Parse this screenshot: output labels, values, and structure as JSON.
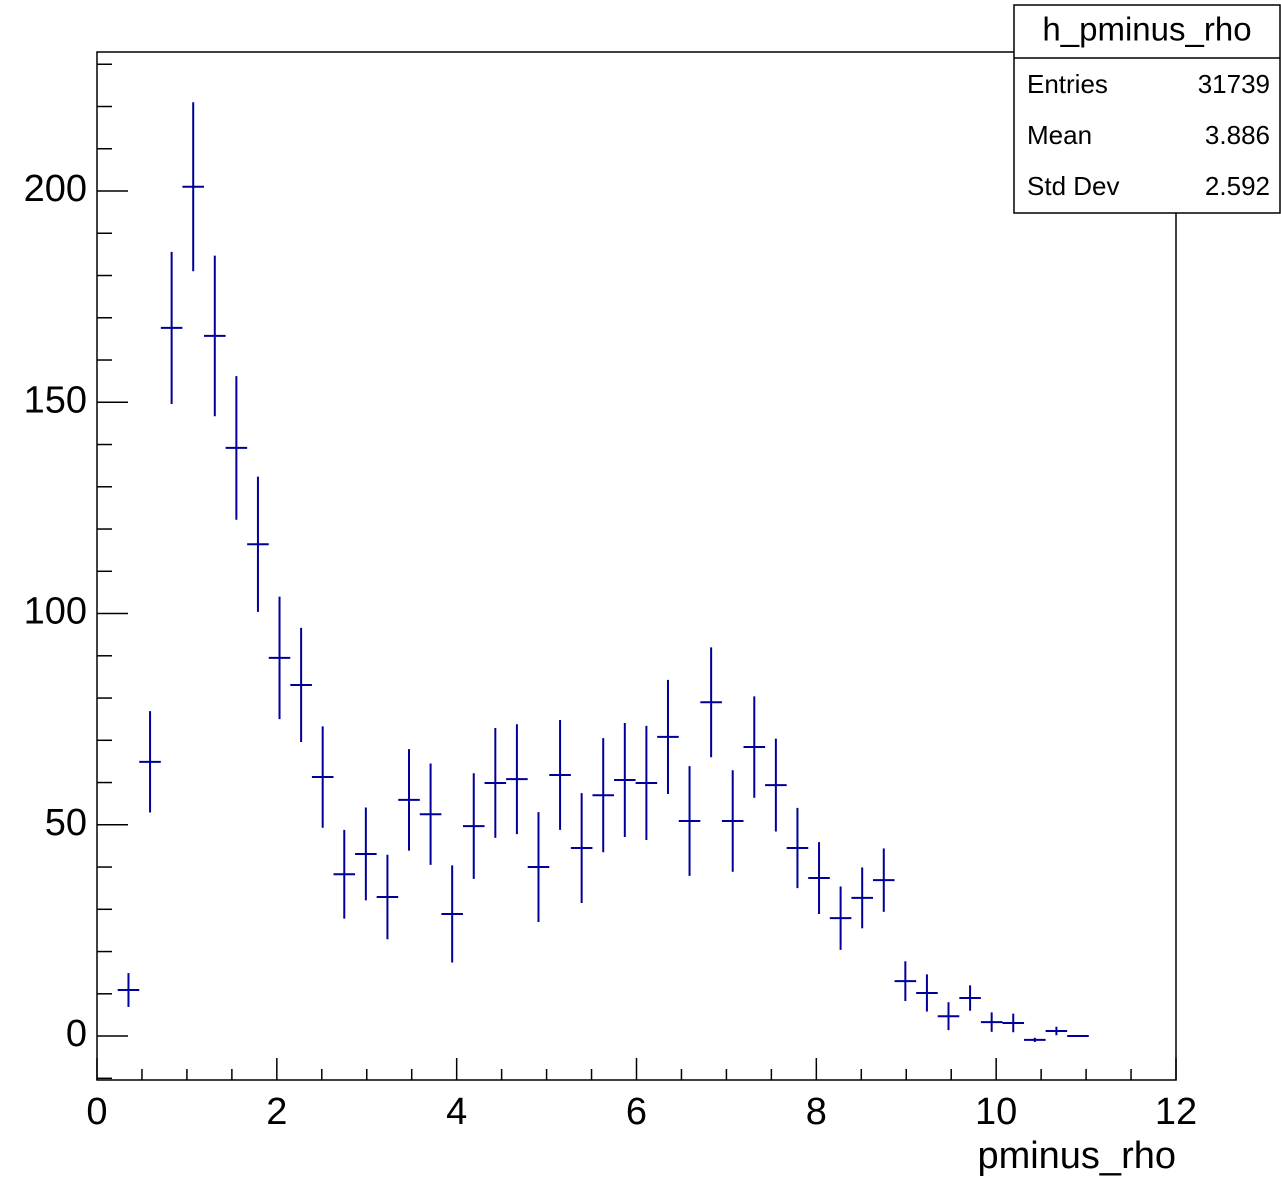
{
  "chart_data": {
    "type": "errorbar",
    "x_label": "pminus_rho",
    "color": "#000099",
    "x": [
      0.35,
      0.59,
      0.83,
      1.07,
      1.31,
      1.55,
      1.79,
      2.03,
      2.27,
      2.51,
      2.75,
      2.99,
      3.23,
      3.47,
      3.71,
      3.95,
      4.19,
      4.43,
      4.67,
      4.91,
      5.15,
      5.39,
      5.63,
      5.87,
      6.11,
      6.35,
      6.59,
      6.83,
      7.07,
      7.31,
      7.55,
      7.79,
      8.03,
      8.27,
      8.51,
      8.75,
      8.99,
      9.23,
      9.47,
      9.71,
      9.95,
      10.19,
      10.43,
      10.67,
      10.91
    ],
    "bin_width": 0.24,
    "values": [
      10.9,
      64.9,
      167.6,
      201,
      165.7,
      139.2,
      116.4,
      89.5,
      83.1,
      61.3,
      38.3,
      43.1,
      32.9,
      55.9,
      52.5,
      28.9,
      49.7,
      59.9,
      60.8,
      40,
      61.8,
      44.5,
      57,
      60.6,
      59.9,
      70.8,
      50.9,
      79,
      50.9,
      68.4,
      59.4,
      44.5,
      37.4,
      27.9,
      32.7,
      36.9,
      13,
      10.2,
      4.7,
      9,
      3.3,
      3.1,
      -0.9,
      1.2,
      0
    ],
    "errors": [
      4,
      12,
      18,
      20,
      19,
      17,
      16,
      14.5,
      13.5,
      12,
      10.5,
      11,
      10,
      12,
      12,
      11.5,
      12.5,
      13,
      13,
      13,
      13,
      13,
      13.5,
      13.5,
      13.5,
      13.5,
      13,
      13,
      12,
      12,
      11,
      9.5,
      8.5,
      7.5,
      7.2,
      7.5,
      4.7,
      4.4,
      3.3,
      3,
      2.3,
      2.2,
      0.5,
      1,
      0
    ],
    "xlim": [
      0,
      12
    ],
    "xticks": [
      0,
      2,
      4,
      6,
      8,
      10,
      12
    ],
    "xminorticks": [
      0.5,
      1,
      1.5,
      2.5,
      3,
      3.5,
      4.5,
      5,
      5.5,
      6.5,
      7,
      7.5,
      8.5,
      9,
      9.5,
      10.5,
      11,
      11.5
    ],
    "ylim": [
      -10.4,
      232.9
    ],
    "yticks": [
      0,
      50,
      100,
      150,
      200
    ],
    "yminorticks": [
      -10,
      10,
      20,
      30,
      40,
      60,
      70,
      80,
      90,
      110,
      120,
      130,
      140,
      160,
      170,
      180,
      190,
      210,
      220,
      230
    ],
    "stats": {
      "title": "h_pminus_rho",
      "rows": [
        {
          "label": "Entries",
          "value": 31739
        },
        {
          "label": "Mean",
          "value": 3.886
        },
        {
          "label": "Std Dev",
          "value": 2.592
        }
      ]
    }
  }
}
